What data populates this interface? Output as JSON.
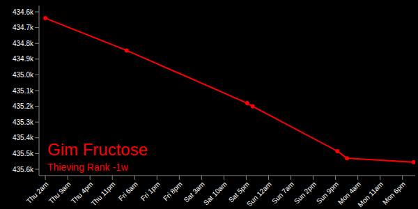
{
  "chart_data": {
    "type": "line",
    "title": "Gim Fructose",
    "subtitle": "Thieving Rank -1w",
    "x": [
      0,
      25.5,
      63.3,
      65,
      91.6,
      94.6,
      115.5
    ],
    "values": [
      434640,
      434845,
      435180,
      435200,
      435485,
      435530,
      435555
    ],
    "color": "#ff0000",
    "marker": "circle",
    "grid": false,
    "xlim": [
      -2,
      116
    ],
    "xticks": [
      {
        "value": 0,
        "label": "Thu 2am"
      },
      {
        "value": 7,
        "label": "Thu 9am"
      },
      {
        "value": 14,
        "label": "Thu 4pm"
      },
      {
        "value": 21,
        "label": "Thu 11pm"
      },
      {
        "value": 28,
        "label": "Fri 6am"
      },
      {
        "value": 35,
        "label": "Fri 1pm"
      },
      {
        "value": 42,
        "label": "Fri 8pm"
      },
      {
        "value": 49,
        "label": "Sat 3am"
      },
      {
        "value": 56,
        "label": "Sat 10am"
      },
      {
        "value": 63,
        "label": "Sat 5pm"
      },
      {
        "value": 70,
        "label": "Sun 12am"
      },
      {
        "value": 77,
        "label": "Sun 7am"
      },
      {
        "value": 84,
        "label": "Sun 2pm"
      },
      {
        "value": 91,
        "label": "Sun 9pm"
      },
      {
        "value": 98,
        "label": "Mon 4am"
      },
      {
        "value": 105,
        "label": "Mon 11am"
      },
      {
        "value": 112,
        "label": "Mon 6pm"
      }
    ],
    "ylim": [
      434560,
      435640
    ],
    "yticks": [
      {
        "value": 434600,
        "label": "434.6k"
      },
      {
        "value": 434700,
        "label": "434.7k"
      },
      {
        "value": 434800,
        "label": "434.8k"
      },
      {
        "value": 434900,
        "label": "434.9k"
      },
      {
        "value": 435000,
        "label": "435.0k"
      },
      {
        "value": 435100,
        "label": "435.1k"
      },
      {
        "value": 435200,
        "label": "435.2k"
      },
      {
        "value": 435300,
        "label": "435.3k"
      },
      {
        "value": 435400,
        "label": "435.4k"
      },
      {
        "value": 435500,
        "label": "435.5k"
      },
      {
        "value": 435600,
        "label": "435.6k"
      }
    ]
  }
}
